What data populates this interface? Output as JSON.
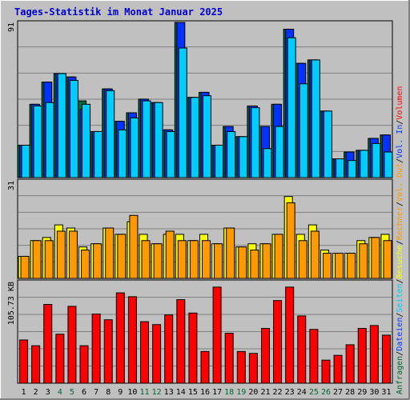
{
  "chart_data": {
    "type": "bar",
    "title": "Tages-Statistik im Monat Januar 2025",
    "days": [
      "1",
      "2",
      "3",
      "4",
      "5",
      "6",
      "7",
      "8",
      "9",
      "10",
      "11",
      "12",
      "13",
      "14",
      "15",
      "16",
      "17",
      "18",
      "19",
      "20",
      "21",
      "22",
      "23",
      "24",
      "25",
      "26",
      "27",
      "28",
      "29",
      "30",
      "31"
    ],
    "weekend_days": [
      "4",
      "5",
      "11",
      "12",
      "18",
      "19",
      "25",
      "26"
    ],
    "colors": {
      "weekend_day_label": "#006633",
      "weekday_label": "#000000",
      "title": "#0000cc",
      "plot_bg": "#c0c0c0",
      "gridline": "#808080"
    },
    "panels": [
      {
        "id": "top",
        "y_tick_label": "91",
        "ylim": [
          0,
          91
        ],
        "series": [
          {
            "name": "Anfragen",
            "color": "#006633",
            "values": [
              19,
              43,
              56,
              61,
              59,
              45,
              27,
              52,
              33,
              38,
              46,
              44,
              28,
              91,
              47,
              50,
              19,
              30,
              24,
              42,
              30,
              43,
              87,
              67,
              69,
              39,
              11,
              15,
              16,
              23,
              25
            ]
          },
          {
            "name": "Dateien",
            "color": "#0033ff",
            "values": [
              19,
              43,
              56,
              61,
              59,
              40,
              27,
              52,
              33,
              38,
              46,
              44,
              28,
              91,
              47,
              50,
              19,
              30,
              24,
              42,
              30,
              43,
              87,
              67,
              69,
              39,
              11,
              15,
              16,
              23,
              25
            ]
          },
          {
            "name": "Seiten",
            "color": "#00ccff",
            "values": [
              19,
              42,
              44,
              61,
              57,
              43,
              27,
              51,
              28,
              35,
              45,
              44,
              27,
              76,
              47,
              48,
              19,
              27,
              24,
              41,
              17,
              30,
              82,
              55,
              69,
              39,
              11,
              10,
              16,
              20,
              15
            ]
          }
        ]
      },
      {
        "id": "middle",
        "y_tick_label": "31",
        "ylim": [
          0,
          31
        ],
        "series": [
          {
            "name": "Besuche",
            "color": "#ffff00",
            "values": [
              7,
              12,
              13,
              17,
              16,
              10,
              11,
              16,
              14,
              18,
              14,
              11,
              14,
              14,
              12,
              14,
              11,
              16,
              10,
              11,
              11,
              14,
              26,
              14,
              17,
              9,
              8,
              8,
              12,
              13,
              14
            ]
          },
          {
            "name": "Rechner",
            "color": "#ff9900",
            "values": [
              7,
              12,
              12,
              15,
              15,
              9,
              11,
              16,
              14,
              20,
              12,
              11,
              15,
              12,
              12,
              12,
              11,
              16,
              10,
              9,
              11,
              14,
              24,
              12,
              15,
              8,
              8,
              8,
              11,
              13,
              12
            ]
          }
        ]
      },
      {
        "id": "bottom",
        "y_tick_label": "105.73 KB",
        "ylim": [
          0,
          105.73
        ],
        "series": [
          {
            "name": "Volumen",
            "color": "#ff0000",
            "values": [
              45,
              39,
              82,
              51,
              80,
              39,
              72,
              66,
              94,
              90,
              64,
              61,
              71,
              87,
              73,
              33,
              100,
              52,
              33,
              31,
              57,
              86,
              100,
              70,
              56,
              24,
              29,
              40,
              57,
              60,
              50
            ]
          }
        ]
      }
    ],
    "right_legend": [
      {
        "text": "Anfragen",
        "color": "#006633"
      },
      {
        "text": "/",
        "color": "#000000"
      },
      {
        "text": "Dateien",
        "color": "#0033ff"
      },
      {
        "text": "/",
        "color": "#000000"
      },
      {
        "text": "Seiten",
        "color": "#00ccff"
      },
      {
        "text": "/",
        "color": "#000000"
      },
      {
        "text": "Besuche",
        "color": "#ffff00"
      },
      {
        "text": "/",
        "color": "#000000"
      },
      {
        "text": "Rechner",
        "color": "#ff9900"
      },
      {
        "text": "/",
        "color": "#000000"
      },
      {
        "text": "Vol. Out",
        "color": "#ff9900"
      },
      {
        "text": "/",
        "color": "#000000"
      },
      {
        "text": "Vol. In",
        "color": "#0033ff"
      },
      {
        "text": "/",
        "color": "#000000"
      },
      {
        "text": "Volumen",
        "color": "#ff0000"
      }
    ]
  }
}
